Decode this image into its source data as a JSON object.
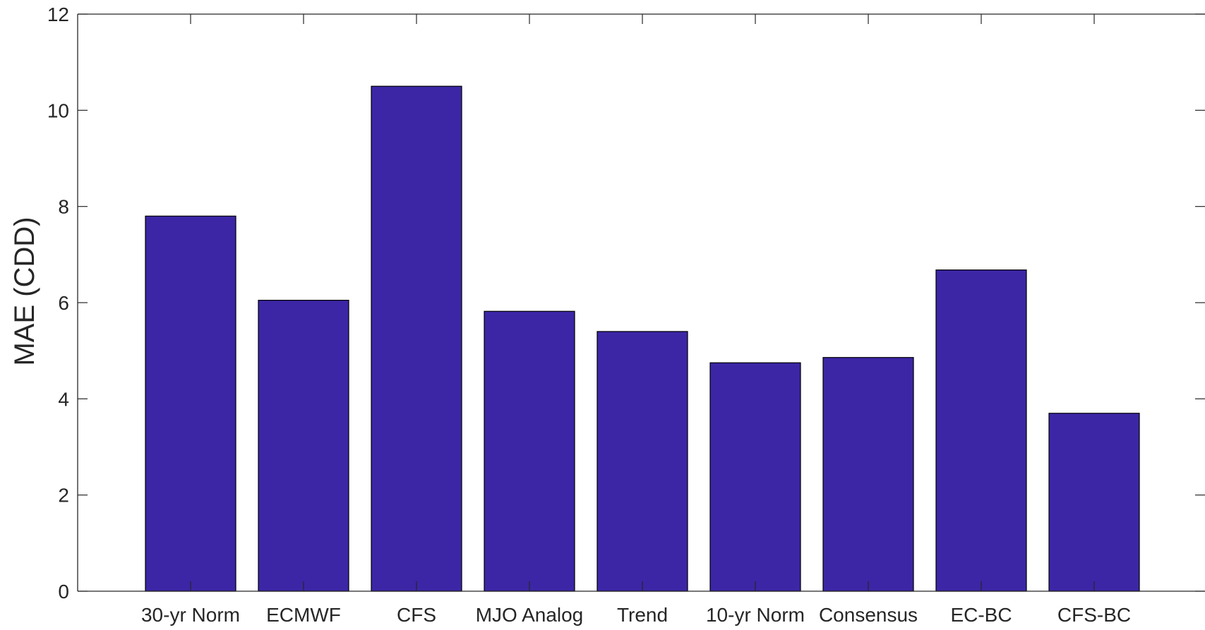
{
  "chart_data": {
    "type": "bar",
    "title": "",
    "xlabel": "",
    "ylabel": "MAE (CDD)",
    "categories": [
      "30-yr Norm",
      "ECMWF",
      "CFS",
      "MJO Analog",
      "Trend",
      "10-yr Norm",
      "Consensus",
      "EC-BC",
      "CFS-BC"
    ],
    "values": [
      7.8,
      6.05,
      10.5,
      5.82,
      5.4,
      4.75,
      4.86,
      6.68,
      3.7
    ],
    "ylim": [
      0,
      12
    ],
    "yticks": [
      0,
      2,
      4,
      6,
      8,
      10,
      12
    ],
    "grid": false,
    "bar_color": "#3c26a5",
    "bar_edge_color": "#000000"
  }
}
